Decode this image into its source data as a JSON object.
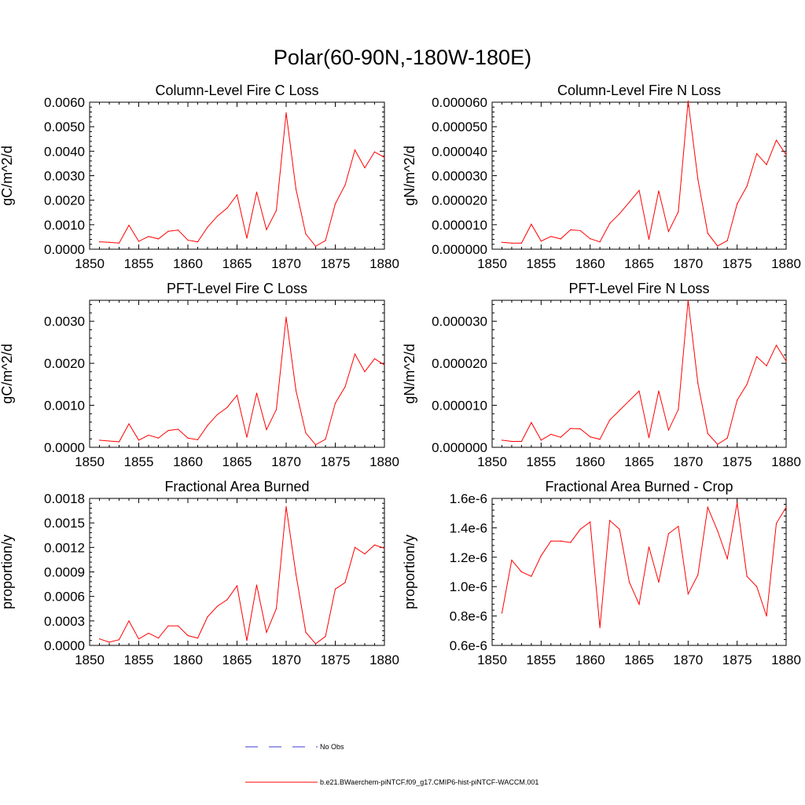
{
  "page": {
    "title": "Polar(60-90N,-180W-180E)"
  },
  "colors": {
    "series_line": "#ff0000",
    "obs_line": "#3b3bd0",
    "axis": "#000000"
  },
  "legend": {
    "items": [
      {
        "label": "No Obs",
        "style": "dashed",
        "color": "#3b3bd0"
      },
      {
        "label": "b.e21.BWaerchem-piNTCF.f09_g17.CMIP6-hist-piNTCF-WACCM.001",
        "style": "solid",
        "color": "#ff0000"
      }
    ]
  },
  "chart_data": [
    {
      "type": "line",
      "title": "Column-Level Fire C Loss",
      "ylabel": "gC/m^2/d",
      "xlim": [
        1850,
        1880
      ],
      "ylim": [
        0,
        0.006
      ],
      "xticks": [
        "1850",
        "1855",
        "1860",
        "1865",
        "1870",
        "1875",
        "1880"
      ],
      "yticks": [
        "0.0000",
        "0.0010",
        "0.0020",
        "0.0030",
        "0.0040",
        "0.0050",
        "0.0060"
      ],
      "x": [
        1851,
        1852,
        1853,
        1854,
        1855,
        1856,
        1857,
        1858,
        1859,
        1860,
        1861,
        1862,
        1863,
        1864,
        1865,
        1866,
        1867,
        1868,
        1869,
        1870,
        1871,
        1872,
        1873,
        1874,
        1875,
        1876,
        1877,
        1878,
        1879,
        1880
      ],
      "series": [
        {
          "name": "b.e21.BWaerchem-piNTCF.f09_g17.CMIP6-hist-piNTCF-WACCM.001",
          "values": [
            0.0003,
            0.00028,
            0.00025,
            0.00098,
            0.00032,
            0.00052,
            0.00042,
            0.00073,
            0.00078,
            0.00037,
            0.0003,
            0.0009,
            0.00135,
            0.00168,
            0.00222,
            0.00045,
            0.00233,
            0.0008,
            0.00158,
            0.00557,
            0.00245,
            0.00062,
            0.00012,
            0.00035,
            0.00185,
            0.00262,
            0.00405,
            0.00332,
            0.00397,
            0.00375
          ]
        }
      ]
    },
    {
      "type": "line",
      "title": "Column-Level Fire N Loss",
      "ylabel": "gN/m^2/d",
      "xlim": [
        1850,
        1880
      ],
      "ylim": [
        0,
        6e-05
      ],
      "xticks": [
        "1850",
        "1855",
        "1860",
        "1865",
        "1870",
        "1875",
        "1880"
      ],
      "yticks": [
        "0.000000",
        "0.000010",
        "0.000020",
        "0.000030",
        "0.000040",
        "0.000050",
        "0.000060"
      ],
      "x": [
        1851,
        1852,
        1853,
        1854,
        1855,
        1856,
        1857,
        1858,
        1859,
        1860,
        1861,
        1862,
        1863,
        1864,
        1865,
        1866,
        1867,
        1868,
        1869,
        1870,
        1871,
        1872,
        1873,
        1874,
        1875,
        1876,
        1877,
        1878,
        1879,
        1880
      ],
      "series": [
        {
          "name": "b.e21.BWaerchem-piNTCF.f09_g17.CMIP6-hist-piNTCF-WACCM.001",
          "values": [
            2.8e-06,
            2.5e-06,
            2.5e-06,
            1.02e-05,
            3.3e-06,
            5.2e-06,
            4.2e-06,
            7.9e-06,
            7.6e-06,
            4.3e-06,
            3e-06,
            1.05e-05,
            1.45e-05,
            1.92e-05,
            2.4e-05,
            4e-06,
            2.38e-05,
            7.2e-06,
            1.53e-05,
            6.05e-05,
            2.85e-05,
            6.5e-06,
            1.3e-06,
            3.5e-06,
            1.85e-05,
            2.57e-05,
            3.9e-05,
            3.45e-05,
            4.45e-05,
            3.85e-05
          ]
        }
      ]
    },
    {
      "type": "line",
      "title": "PFT-Level Fire C Loss",
      "ylabel": "gC/m^2/d",
      "xlim": [
        1850,
        1880
      ],
      "ylim": [
        0,
        0.0035
      ],
      "xticks": [
        "1850",
        "1855",
        "1860",
        "1865",
        "1870",
        "1875",
        "1880"
      ],
      "yticks": [
        "0.0000",
        "0.0010",
        "0.0020",
        "0.0030"
      ],
      "ytick_values": [
        0,
        0.001,
        0.002,
        0.003
      ],
      "x": [
        1851,
        1852,
        1853,
        1854,
        1855,
        1856,
        1857,
        1858,
        1859,
        1860,
        1861,
        1862,
        1863,
        1864,
        1865,
        1866,
        1867,
        1868,
        1869,
        1870,
        1871,
        1872,
        1873,
        1874,
        1875,
        1876,
        1877,
        1878,
        1879,
        1880
      ],
      "series": [
        {
          "name": "b.e21.BWaerchem-piNTCF.f09_g17.CMIP6-hist-piNTCF-WACCM.001",
          "values": [
            0.00017,
            0.00015,
            0.00013,
            0.00056,
            0.00017,
            0.00029,
            0.00022,
            0.0004,
            0.00043,
            0.00022,
            0.00018,
            0.00052,
            0.00078,
            0.00095,
            0.00124,
            0.00024,
            0.00129,
            0.00042,
            0.0009,
            0.0031,
            0.00135,
            0.00034,
            6e-05,
            0.00019,
            0.00105,
            0.00144,
            0.00222,
            0.0018,
            0.00211,
            0.00196
          ]
        }
      ]
    },
    {
      "type": "line",
      "title": "PFT-Level Fire N Loss",
      "ylabel": "gN/m^2/d",
      "xlim": [
        1850,
        1880
      ],
      "ylim": [
        0,
        3.5e-05
      ],
      "xticks": [
        "1850",
        "1855",
        "1860",
        "1865",
        "1870",
        "1875",
        "1880"
      ],
      "yticks": [
        "0.000000",
        "0.000010",
        "0.000020",
        "0.000030"
      ],
      "ytick_values": [
        0,
        1e-05,
        2e-05,
        3e-05
      ],
      "x": [
        1851,
        1852,
        1853,
        1854,
        1855,
        1856,
        1857,
        1858,
        1859,
        1860,
        1861,
        1862,
        1863,
        1864,
        1865,
        1866,
        1867,
        1868,
        1869,
        1870,
        1871,
        1872,
        1873,
        1874,
        1875,
        1876,
        1877,
        1878,
        1879,
        1880
      ],
      "series": [
        {
          "name": "b.e21.BWaerchem-piNTCF.f09_g17.CMIP6-hist-piNTCF-WACCM.001",
          "values": [
            1.7e-06,
            1.4e-06,
            1.4e-06,
            5.9e-06,
            1.7e-06,
            3.1e-06,
            2.4e-06,
            4.5e-06,
            4.4e-06,
            2.5e-06,
            1.9e-06,
            6.5e-06,
            8.8e-06,
            1.11e-05,
            1.34e-05,
            2.3e-06,
            1.34e-05,
            4.1e-06,
            9e-06,
            3.5e-05,
            1.52e-05,
            3.3e-06,
            7e-07,
            2.2e-06,
            1.12e-05,
            1.5e-05,
            2.16e-05,
            1.94e-05,
            2.43e-05,
            2.05e-05
          ]
        }
      ]
    },
    {
      "type": "line",
      "title": "Fractional Area Burned",
      "ylabel": "proportion/y",
      "xlim": [
        1850,
        1880
      ],
      "ylim": [
        0,
        0.0018
      ],
      "xticks": [
        "1850",
        "1855",
        "1860",
        "1865",
        "1870",
        "1875",
        "1880"
      ],
      "yticks": [
        "0.0000",
        "0.0003",
        "0.0006",
        "0.0009",
        "0.0012",
        "0.0015",
        "0.0018"
      ],
      "x": [
        1851,
        1852,
        1853,
        1854,
        1855,
        1856,
        1857,
        1858,
        1859,
        1860,
        1861,
        1862,
        1863,
        1864,
        1865,
        1866,
        1867,
        1868,
        1869,
        1870,
        1871,
        1872,
        1873,
        1874,
        1875,
        1876,
        1877,
        1878,
        1879,
        1880
      ],
      "series": [
        {
          "name": "b.e21.BWaerchem-piNTCF.f09_g17.CMIP6-hist-piNTCF-WACCM.001",
          "values": [
            8e-05,
            4e-05,
            7e-05,
            0.0003,
            8e-05,
            0.00015,
            9e-05,
            0.00024,
            0.00024,
            0.00012,
            9e-05,
            0.00035,
            0.00048,
            0.00056,
            0.00073,
            6e-05,
            0.00074,
            0.00016,
            0.00045,
            0.0017,
            0.00087,
            0.00016,
            2e-05,
            0.00011,
            0.00069,
            0.00077,
            0.0012,
            0.00112,
            0.00123,
            0.00119
          ]
        }
      ]
    },
    {
      "type": "line",
      "title": "Fractional Area Burned - Crop",
      "ylabel": "proportion/y",
      "xlim": [
        1850,
        1880
      ],
      "ylim": [
        6e-07,
        1.6e-06
      ],
      "xticks": [
        "1850",
        "1855",
        "1860",
        "1865",
        "1870",
        "1875",
        "1880"
      ],
      "yticks": [
        "0.6e-6",
        "0.8e-6",
        "1.0e-6",
        "1.2e-6",
        "1.4e-6",
        "1.6e-6"
      ],
      "x": [
        1851,
        1852,
        1853,
        1854,
        1855,
        1856,
        1857,
        1858,
        1859,
        1860,
        1861,
        1862,
        1863,
        1864,
        1865,
        1866,
        1867,
        1868,
        1869,
        1870,
        1871,
        1872,
        1873,
        1874,
        1875,
        1876,
        1877,
        1878,
        1879,
        1880
      ],
      "series": [
        {
          "name": "b.e21.BWaerchem-piNTCF.f09_g17.CMIP6-hist-piNTCF-WACCM.001",
          "values": [
            8.2e-07,
            1.18e-06,
            1.1e-06,
            1.07e-06,
            1.21e-06,
            1.31e-06,
            1.31e-06,
            1.3e-06,
            1.39e-06,
            1.44e-06,
            7.2e-07,
            1.45e-06,
            1.39e-06,
            1.03e-06,
            8.8e-07,
            1.27e-06,
            1.03e-06,
            1.36e-06,
            1.41e-06,
            9.5e-07,
            1.08e-06,
            1.54e-06,
            1.38e-06,
            1.19e-06,
            1.57e-06,
            1.07e-06,
            1e-06,
            8e-07,
            1.43e-06,
            1.54e-06
          ]
        }
      ]
    }
  ]
}
